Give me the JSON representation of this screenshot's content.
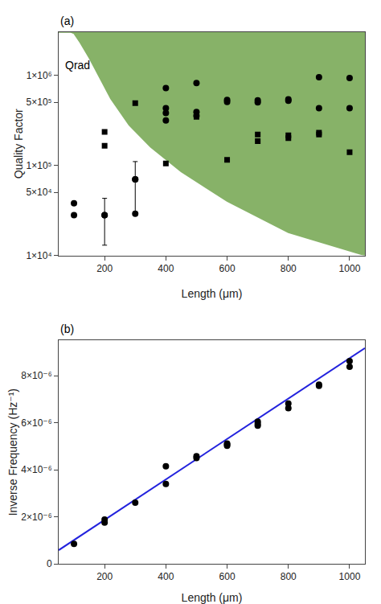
{
  "chart_data": [
    {
      "type": "scatter",
      "title": "(a)",
      "x_label": "Length (μm)",
      "y_label": "Quality Factor",
      "log": "y",
      "grid": false,
      "xlim": [
        50,
        1050
      ],
      "ylim": [
        10000,
        3000000
      ],
      "xticks": [
        200,
        400,
        600,
        800,
        1000
      ],
      "yticks": [
        {
          "value": 10000,
          "label": "1×10⁴"
        },
        {
          "value": 50000,
          "label": "5×10⁴"
        },
        {
          "value": 100000,
          "label": "1×10⁵"
        },
        {
          "value": 500000,
          "label": "5×10⁵"
        },
        {
          "value": 1000000,
          "label": "1×10⁶"
        }
      ],
      "annotations": [
        {
          "text": "Qrad",
          "x": 65,
          "y": 1300000
        }
      ],
      "series": [
        {
          "type": "area",
          "color": "#7aaa58",
          "x": [
            50,
            55,
            60,
            65,
            70,
            80,
            90,
            100,
            120,
            150,
            180,
            220,
            280,
            350,
            450,
            600,
            800,
            1050
          ],
          "values": [
            3000000,
            3000000,
            3000000,
            3000000,
            3000000,
            3000000,
            3000000,
            2900000,
            2300000,
            1550000,
            1000000,
            550000,
            280000,
            160000,
            85000,
            40000,
            18000,
            10000
          ]
        },
        {
          "type": "scatter",
          "marker": "circle",
          "color": "#000000",
          "x": [
            100,
            100,
            200,
            300,
            300,
            400,
            400,
            400,
            400,
            500,
            500,
            500,
            600,
            600,
            700,
            700,
            800,
            800,
            900,
            900,
            1000,
            1000
          ],
          "values": [
            38000,
            28000,
            28000,
            70000,
            29000,
            720000,
            430000,
            380000,
            315000,
            820000,
            390000,
            355000,
            530000,
            505000,
            525000,
            500000,
            540000,
            520000,
            950000,
            430000,
            930000,
            430000
          ],
          "error_low": [
            null,
            null,
            15000,
            40000,
            null,
            null,
            null,
            null,
            null,
            null,
            null,
            null,
            null,
            null,
            null,
            null,
            null,
            null,
            null,
            null,
            null,
            null
          ],
          "error_high": [
            null,
            null,
            15000,
            40000,
            null,
            null,
            null,
            null,
            null,
            null,
            null,
            null,
            null,
            null,
            null,
            null,
            null,
            null,
            null,
            null,
            null,
            null
          ]
        },
        {
          "type": "scatter",
          "marker": "square",
          "color": "#000000",
          "x": [
            200,
            200,
            300,
            400,
            500,
            500,
            600,
            700,
            700,
            800,
            800,
            900,
            900,
            1000
          ],
          "values": [
            235000,
            165000,
            490000,
            105000,
            375000,
            345000,
            115000,
            220000,
            185000,
            215000,
            200000,
            230000,
            220000,
            140000
          ]
        }
      ]
    },
    {
      "type": "scatter",
      "title": "(b)",
      "x_label": "Length (μm)",
      "y_label": "Inverse Frequency (Hz⁻¹)",
      "grid": false,
      "xlim": [
        50,
        1050
      ],
      "ylim": [
        0,
        9.5e-06
      ],
      "xticks": [
        200,
        400,
        600,
        800,
        1000
      ],
      "yticks": [
        0,
        {
          "value": 2e-06,
          "label": "2×10⁻⁶"
        },
        {
          "value": 4e-06,
          "label": "4×10⁻⁶"
        },
        {
          "value": 6e-06,
          "label": "6×10⁻⁶"
        },
        {
          "value": 8e-06,
          "label": "8×10⁻⁶"
        }
      ],
      "series": [
        {
          "type": "line",
          "color": "#2222dd",
          "x": [
            50,
            1050
          ],
          "values": [
            5.8e-07,
            9.18e-06
          ]
        },
        {
          "type": "scatter",
          "marker": "circle",
          "color": "#000000",
          "x": [
            100,
            200,
            200,
            300,
            400,
            400,
            500,
            500,
            600,
            600,
            600,
            700,
            700,
            700,
            800,
            800,
            900,
            900,
            1000,
            1000
          ],
          "values": [
            8.5e-07,
            1.75e-06,
            1.88e-06,
            2.6e-06,
            3.4e-06,
            4.15e-06,
            4.5e-06,
            4.58e-06,
            5.02e-06,
            5.12e-06,
            5.07e-06,
            5.95e-06,
            6.05e-06,
            5.88e-06,
            6.62e-06,
            6.82e-06,
            7.62e-06,
            7.57e-06,
            8.38e-06,
            8.62e-06
          ]
        }
      ]
    }
  ]
}
